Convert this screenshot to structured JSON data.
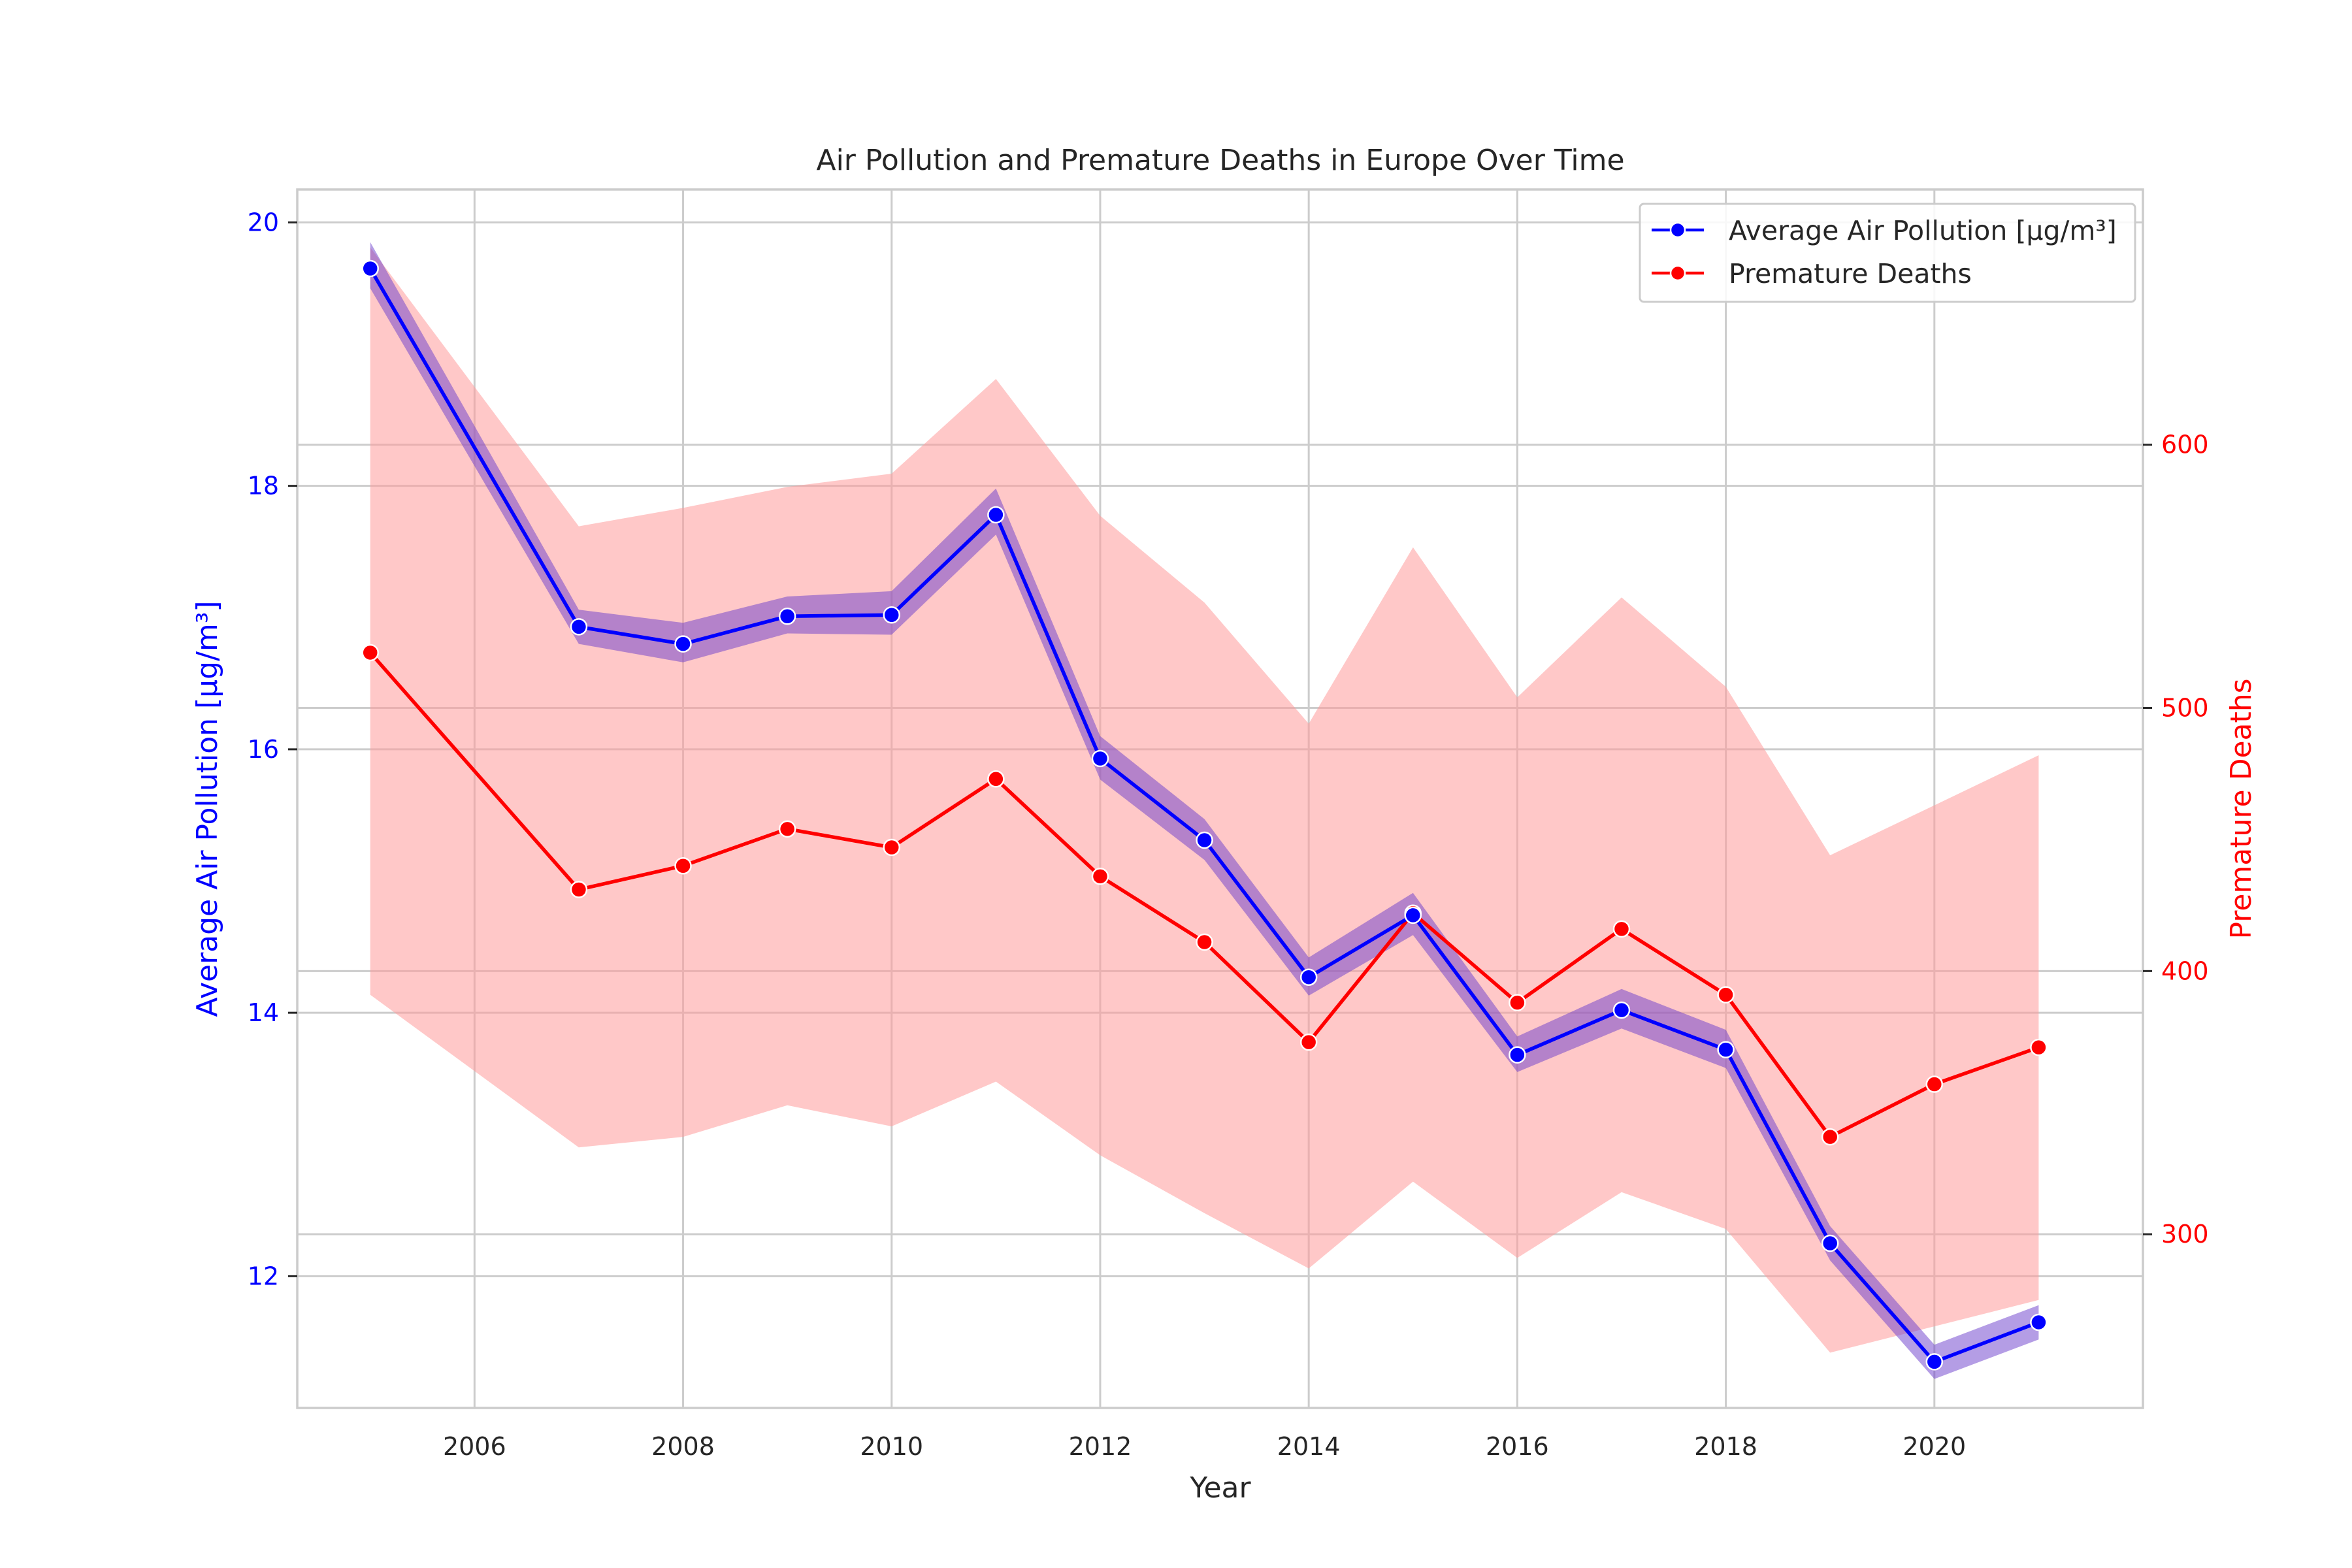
{
  "chart_data": {
    "type": "line",
    "title": "Air Pollution and Premature Deaths in Europe Over Time",
    "xlabel": "Year",
    "xlim": [
      2004.3,
      2022.0
    ],
    "x_ticks": [
      2006,
      2008,
      2010,
      2012,
      2014,
      2016,
      2018,
      2020
    ],
    "grid": true,
    "legend_position": "top-right",
    "y_left": {
      "label": "Average Air Pollution [µg/m³]",
      "color": "#0000ff",
      "ylim": [
        11.0,
        20.25
      ],
      "ticks": [
        12,
        14,
        16,
        18,
        20
      ]
    },
    "y_right": {
      "label": "Premature Deaths",
      "color": "#ff0000",
      "ylim": [
        234,
        697
      ],
      "ticks": [
        300,
        400,
        500,
        600
      ]
    },
    "series": [
      {
        "name": "Average Air Pollution [µg/m³]",
        "axis": "left",
        "color": "#0000ff",
        "band_color": "#6a3ccc",
        "x": [
          2005,
          2007,
          2008,
          2009,
          2010,
          2011,
          2012,
          2013,
          2014,
          2015,
          2016,
          2017,
          2018,
          2019,
          2020,
          2021
        ],
        "y": [
          19.65,
          16.93,
          16.8,
          17.01,
          17.02,
          17.78,
          15.93,
          15.31,
          14.27,
          14.74,
          13.68,
          14.02,
          13.72,
          12.25,
          11.35,
          11.65
        ],
        "ci_low": [
          19.5,
          16.8,
          16.66,
          16.88,
          16.87,
          17.63,
          15.77,
          15.16,
          14.13,
          14.59,
          13.55,
          13.88,
          13.58,
          12.12,
          11.22,
          11.52
        ],
        "ci_high": [
          19.85,
          17.06,
          16.96,
          17.16,
          17.2,
          17.98,
          16.1,
          15.47,
          14.42,
          14.91,
          13.82,
          14.18,
          13.87,
          12.38,
          11.48,
          11.78
        ]
      },
      {
        "name": "Premature Deaths",
        "axis": "right",
        "color": "#ff0000",
        "band_color": "#ff9b9b",
        "x": [
          2005,
          2007,
          2008,
          2009,
          2010,
          2011,
          2012,
          2013,
          2014,
          2015,
          2016,
          2017,
          2018,
          2019,
          2020,
          2021
        ],
        "y": [
          521,
          431,
          440,
          454,
          447,
          473,
          436,
          411,
          373,
          422,
          388,
          416,
          391,
          337,
          357,
          371
        ],
        "ci_low": [
          391,
          333,
          337,
          349,
          341,
          358,
          330,
          308,
          287,
          320,
          291,
          316,
          302,
          255,
          265,
          275
        ],
        "ci_high": [
          675,
          569,
          576,
          584,
          589,
          625,
          573,
          540,
          494,
          561,
          504,
          542,
          508,
          444,
          463,
          482
        ]
      }
    ]
  }
}
